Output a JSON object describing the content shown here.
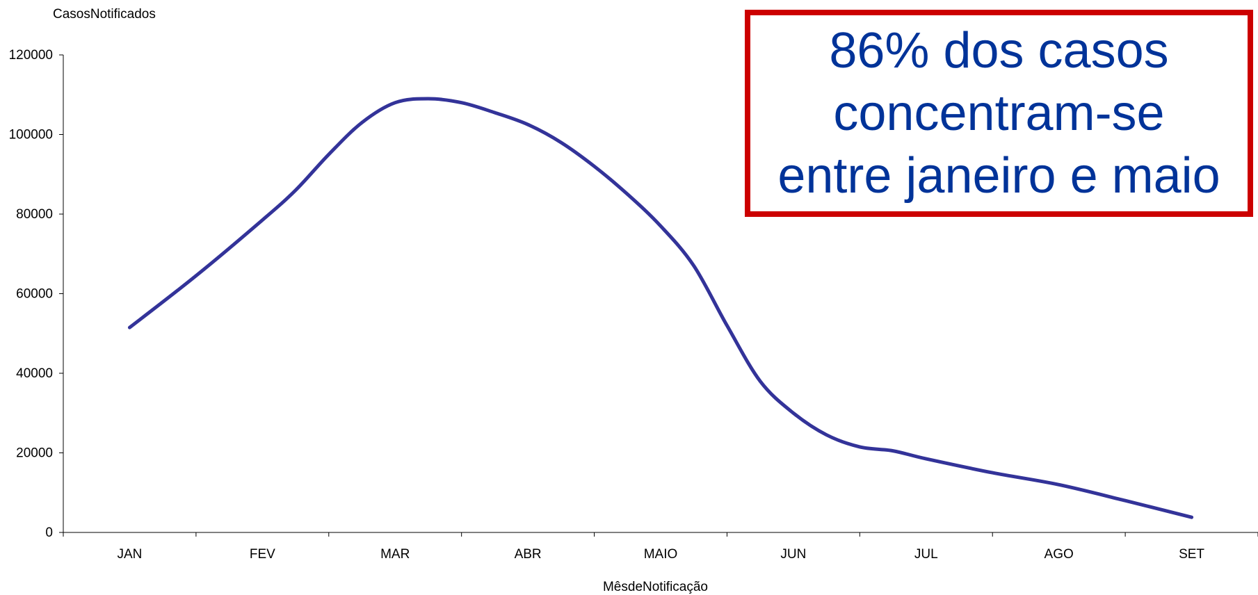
{
  "chart_data": {
    "type": "line",
    "ylabel": "CasosNotificados",
    "xlabel": "MêsdeNotificação",
    "categories": [
      "JAN",
      "FEV",
      "MAR",
      "ABR",
      "MAIO",
      "JUN",
      "JUL",
      "AGO",
      "SET"
    ],
    "ylim": [
      0,
      120000
    ],
    "yticks": [
      0,
      20000,
      40000,
      60000,
      80000,
      100000,
      120000
    ],
    "grid": false,
    "legend": "none",
    "series": [
      {
        "color": "#333399",
        "x": [
          0,
          0.5,
          1,
          1.25,
          1.5,
          1.75,
          2,
          2.25,
          2.5,
          2.75,
          3,
          3.25,
          3.5,
          3.75,
          4,
          4.25,
          4.5,
          4.75,
          5,
          5.25,
          5.5,
          5.75,
          6,
          6.5,
          7,
          7.5,
          8
        ],
        "y": [
          51500,
          64500,
          78500,
          86000,
          95000,
          103000,
          108000,
          109000,
          108000,
          105500,
          102500,
          98000,
          92000,
          85000,
          77000,
          67000,
          52000,
          38000,
          30000,
          24500,
          21500,
          20500,
          18500,
          15000,
          12000,
          8000,
          3800
        ]
      }
    ]
  },
  "annotation": {
    "text": "86% dos casos\nconcentram-se\nentre janeiro e maio",
    "text_color": "#003399",
    "border_color": "#cc0000"
  }
}
